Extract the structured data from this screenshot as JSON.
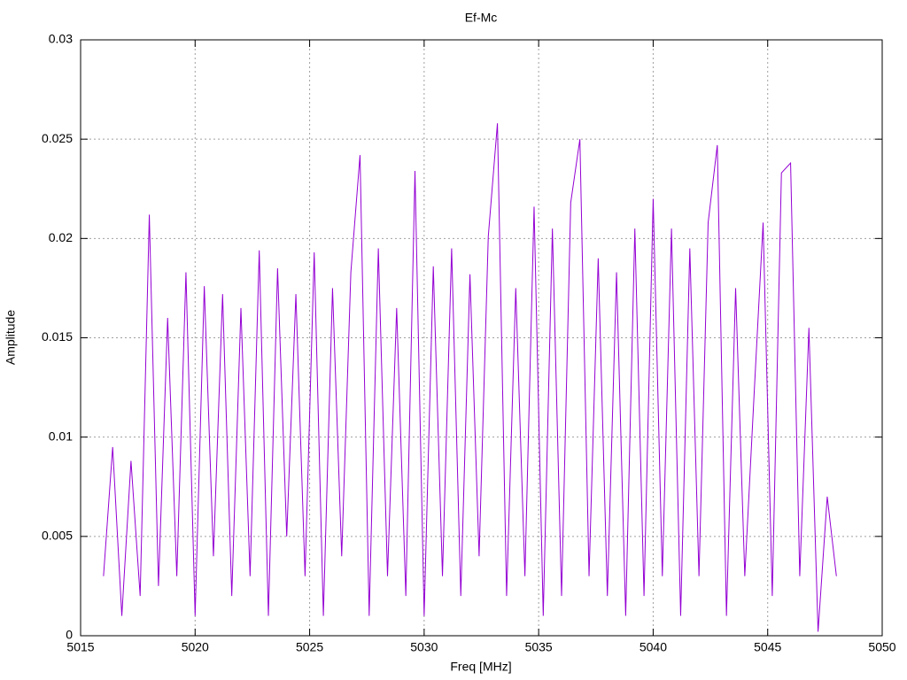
{
  "chart_data": {
    "type": "line",
    "title": "Ef-Mc",
    "x_label": "Freq [MHz]",
    "y_label": "Amplitude",
    "x": [
      5016.0,
      5016.4,
      5016.8,
      5017.2,
      5017.6,
      5018.0,
      5018.4,
      5018.8,
      5019.2,
      5019.6,
      5020.0,
      5020.4,
      5020.8,
      5021.2,
      5021.6,
      5022.0,
      5022.4,
      5022.8,
      5023.2,
      5023.6,
      5024.0,
      5024.4,
      5024.8,
      5025.2,
      5025.6,
      5026.0,
      5026.4,
      5026.8,
      5027.2,
      5027.6,
      5028.0,
      5028.4,
      5028.8,
      5029.2,
      5029.6,
      5030.0,
      5030.4,
      5030.8,
      5031.2,
      5031.6,
      5032.0,
      5032.4,
      5032.8,
      5033.2,
      5033.6,
      5034.0,
      5034.4,
      5034.8,
      5035.2,
      5035.6,
      5036.0,
      5036.4,
      5036.8,
      5037.2,
      5037.6,
      5038.0,
      5038.4,
      5038.8,
      5039.2,
      5039.6,
      5040.0,
      5040.4,
      5040.8,
      5041.2,
      5041.6,
      5042.0,
      5042.4,
      5042.8,
      5043.2,
      5043.6,
      5044.0,
      5044.4,
      5044.8,
      5045.2,
      5045.6,
      5046.0,
      5046.4,
      5046.8,
      5047.2,
      5047.6,
      5048.0
    ],
    "values": [
      0.003,
      0.0095,
      0.001,
      0.0088,
      0.002,
      0.0212,
      0.0025,
      0.016,
      0.003,
      0.0183,
      0.001,
      0.0176,
      0.004,
      0.0172,
      0.002,
      0.0165,
      0.003,
      0.0194,
      0.001,
      0.0185,
      0.005,
      0.0172,
      0.003,
      0.0193,
      0.001,
      0.0175,
      0.004,
      0.0183,
      0.0242,
      0.001,
      0.0195,
      0.003,
      0.0165,
      0.002,
      0.0234,
      0.001,
      0.0186,
      0.003,
      0.0195,
      0.002,
      0.0182,
      0.004,
      0.0201,
      0.0258,
      0.002,
      0.0175,
      0.003,
      0.0216,
      0.001,
      0.0205,
      0.002,
      0.0218,
      0.025,
      0.003,
      0.019,
      0.002,
      0.0183,
      0.001,
      0.0205,
      0.002,
      0.022,
      0.003,
      0.0205,
      0.001,
      0.0195,
      0.003,
      0.0208,
      0.0247,
      0.001,
      0.0175,
      0.003,
      0.012,
      0.0208,
      0.002,
      0.0233,
      0.0238,
      0.003,
      0.0155,
      0.0002,
      0.007,
      0.003
    ],
    "color": "#9400d3",
    "xlim": [
      5015,
      5050
    ],
    "xticks": [
      5015,
      5020,
      5025,
      5030,
      5035,
      5040,
      5045,
      5050
    ],
    "ylim": [
      0,
      0.03
    ],
    "yticks": [
      0,
      0.005,
      0.01,
      0.015,
      0.02,
      0.025,
      0.03
    ],
    "grid": true
  }
}
